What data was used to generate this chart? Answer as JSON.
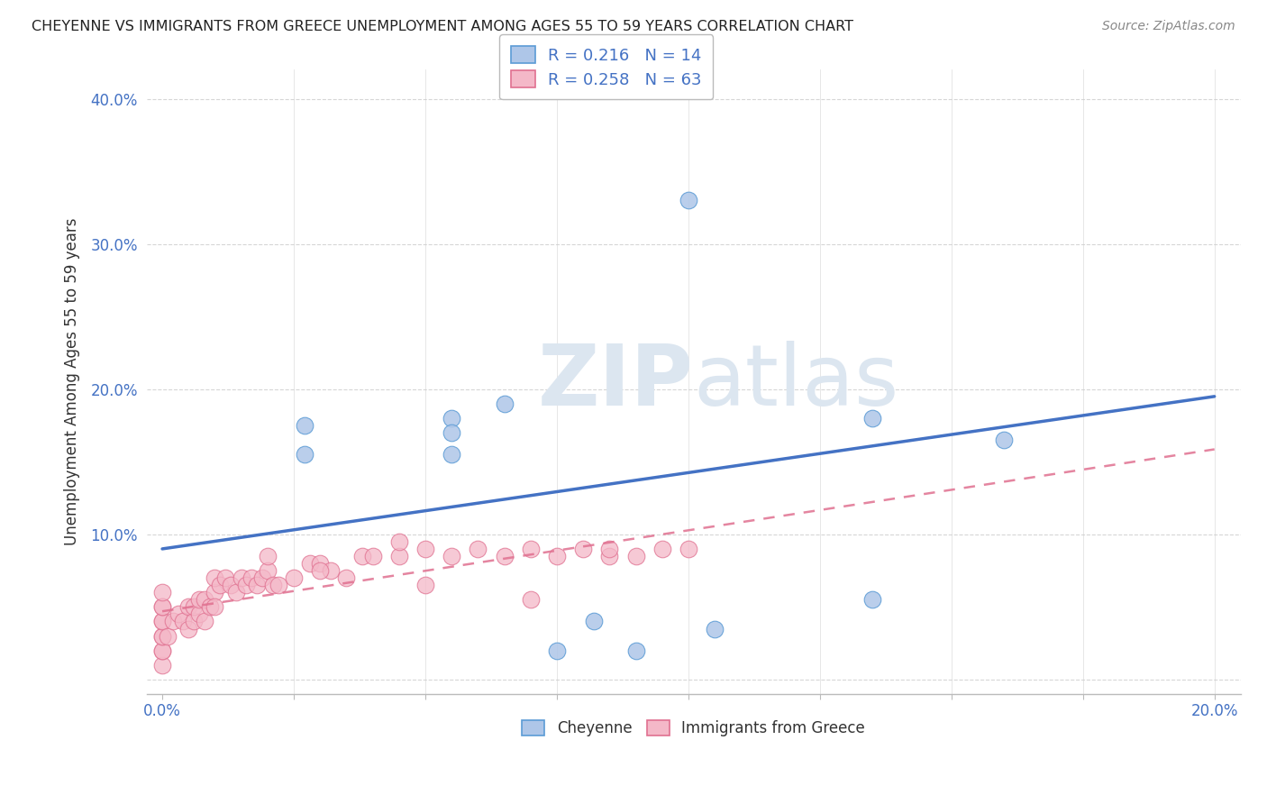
{
  "title": "CHEYENNE VS IMMIGRANTS FROM GREECE UNEMPLOYMENT AMONG AGES 55 TO 59 YEARS CORRELATION CHART",
  "source": "Source: ZipAtlas.com",
  "ylabel": "Unemployment Among Ages 55 to 59 years",
  "xlim": [
    0.0,
    0.2
  ],
  "ylim": [
    0.0,
    0.4
  ],
  "yticks": [
    0.0,
    0.1,
    0.2,
    0.3,
    0.4
  ],
  "ytick_labels": [
    "",
    "10.0%",
    "20.0%",
    "30.0%",
    "40.0%"
  ],
  "cheyenne_color": "#aec6e8",
  "cheyenne_edge": "#5b9bd5",
  "greece_color": "#f4b8c8",
  "greece_edge": "#e07090",
  "cheyenne_line_color": "#4472c4",
  "greece_line_color": "#e07090",
  "watermark_color": "#dce6f0",
  "cheyenne_x": [
    0.027,
    0.027,
    0.055,
    0.055,
    0.055,
    0.065,
    0.075,
    0.082,
    0.09,
    0.1,
    0.105,
    0.16,
    0.135,
    0.135
  ],
  "cheyenne_y": [
    0.175,
    0.155,
    0.18,
    0.17,
    0.155,
    0.19,
    0.02,
    0.04,
    0.02,
    0.33,
    0.035,
    0.165,
    0.18,
    0.055
  ],
  "greece_x": [
    0.0,
    0.0,
    0.0,
    0.0,
    0.0,
    0.0,
    0.0,
    0.0,
    0.0,
    0.0,
    0.001,
    0.002,
    0.003,
    0.004,
    0.005,
    0.005,
    0.006,
    0.006,
    0.007,
    0.007,
    0.008,
    0.008,
    0.009,
    0.01,
    0.01,
    0.01,
    0.011,
    0.012,
    0.013,
    0.014,
    0.015,
    0.016,
    0.017,
    0.018,
    0.019,
    0.02,
    0.021,
    0.022,
    0.025,
    0.028,
    0.03,
    0.032,
    0.035,
    0.038,
    0.04,
    0.045,
    0.05,
    0.055,
    0.06,
    0.065,
    0.07,
    0.075,
    0.08,
    0.085,
    0.09,
    0.095,
    0.1,
    0.05,
    0.07,
    0.045,
    0.085,
    0.03,
    0.02
  ],
  "greece_y": [
    0.01,
    0.02,
    0.02,
    0.03,
    0.03,
    0.04,
    0.04,
    0.05,
    0.05,
    0.06,
    0.03,
    0.04,
    0.045,
    0.04,
    0.035,
    0.05,
    0.04,
    0.05,
    0.045,
    0.055,
    0.04,
    0.055,
    0.05,
    0.06,
    0.05,
    0.07,
    0.065,
    0.07,
    0.065,
    0.06,
    0.07,
    0.065,
    0.07,
    0.065,
    0.07,
    0.075,
    0.065,
    0.065,
    0.07,
    0.08,
    0.08,
    0.075,
    0.07,
    0.085,
    0.085,
    0.085,
    0.09,
    0.085,
    0.09,
    0.085,
    0.09,
    0.085,
    0.09,
    0.085,
    0.085,
    0.09,
    0.09,
    0.065,
    0.055,
    0.095,
    0.09,
    0.075,
    0.085
  ],
  "chey_line_x0": 0.0,
  "chey_line_y0": 0.09,
  "chey_line_x1": 0.2,
  "chey_line_y1": 0.195,
  "greece_line_x0": 0.0,
  "greece_line_y0": 0.047,
  "greece_line_x1": 0.095,
  "greece_line_y1": 0.1
}
